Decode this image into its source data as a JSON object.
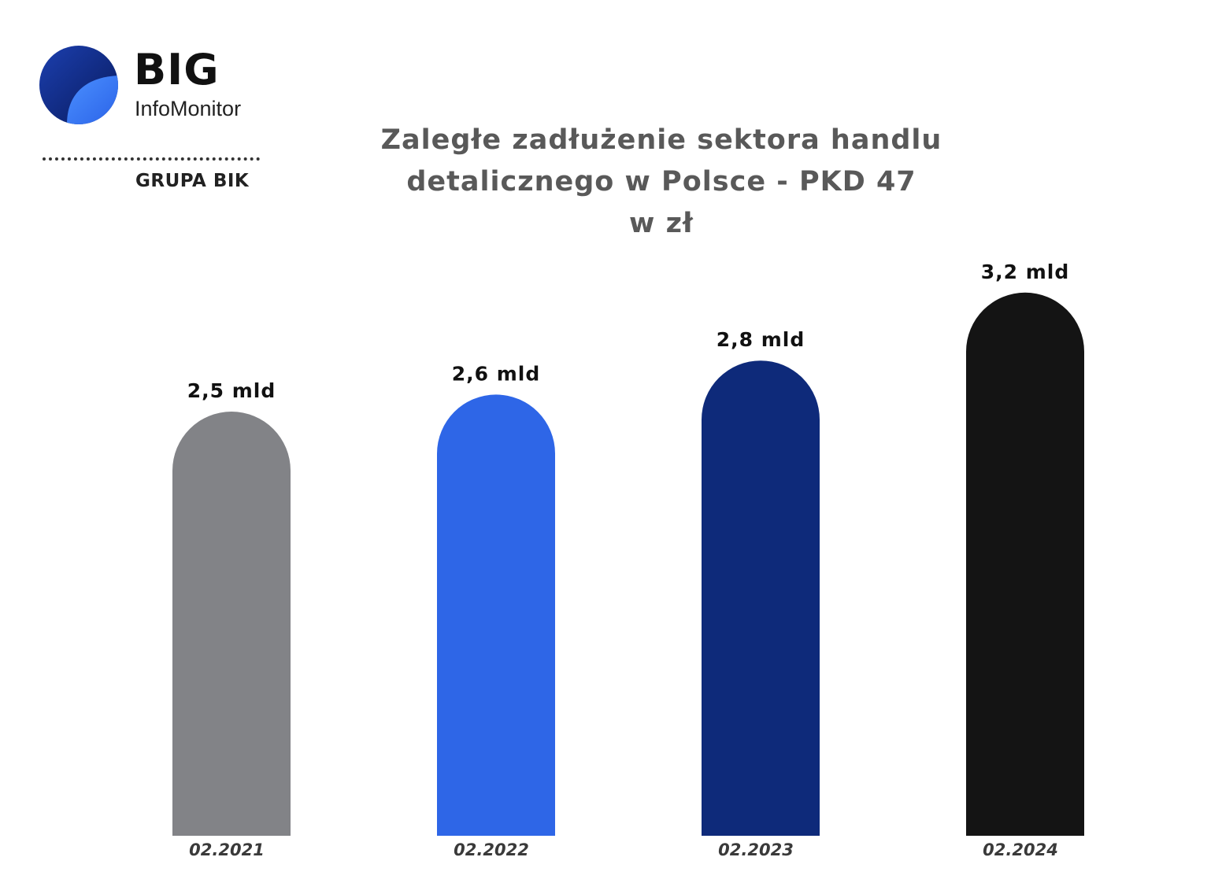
{
  "logo": {
    "brand": "BIG",
    "product": "InfoMonitor",
    "group": "GRUPA BIK"
  },
  "colors": {
    "title": "#595959",
    "label": "#111111",
    "bars": [
      "#828387",
      "#2E66E7",
      "#0E2A7A",
      "#141414"
    ],
    "logo_dark": "#0B1F66",
    "logo_light": "#3B82F6"
  },
  "chart_data": {
    "type": "bar",
    "title_lines": [
      "Zaległe zadłużenie sektora handlu",
      "detalicznego w Polsce - PKD 47",
      "w zł"
    ],
    "categories": [
      "02.2021",
      "02.2022",
      "02.2023",
      "02.2024"
    ],
    "values": [
      2.5,
      2.6,
      2.8,
      3.2
    ],
    "value_labels": [
      "2,5 mld",
      "2,6 mld",
      "2,8 mld",
      "3,2 mld"
    ],
    "xlabel": "",
    "ylabel": "",
    "grid": false,
    "legend": "none"
  }
}
